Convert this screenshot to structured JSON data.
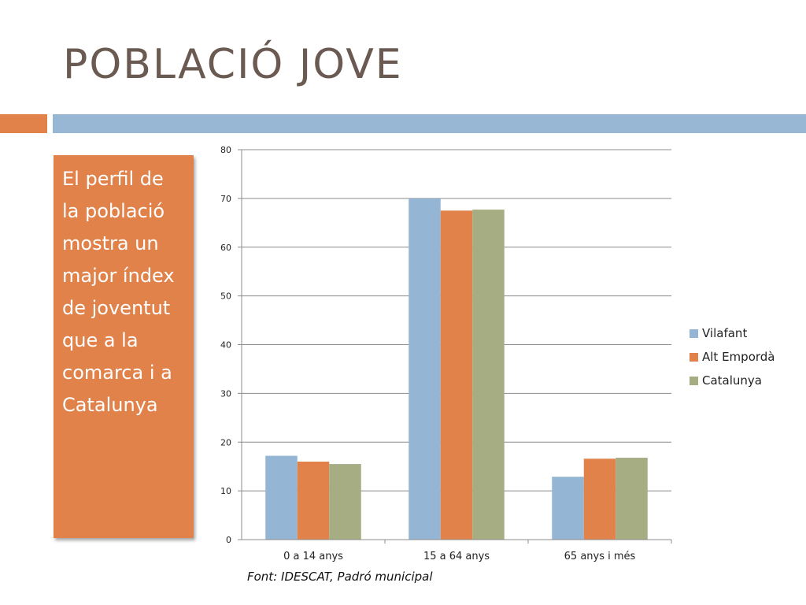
{
  "slide": {
    "title": "POBLACIÓ JOVE",
    "callout": "El perfil de la població mostra un major índex de joventut que a la comarca i a Catalunya",
    "source": "Font: IDESCAT, Padró municipal"
  },
  "colors": {
    "accent_orange": "#e0824a",
    "accent_blue": "#98b7d4",
    "title": "#6b5a52"
  },
  "chart_data": {
    "type": "bar",
    "title": "",
    "xlabel": "",
    "ylabel": "",
    "categories": [
      "0 a 14 anys",
      "15 a 64 anys",
      "65 anys i més"
    ],
    "series": [
      {
        "name": "Vilafant",
        "values": [
          17.2,
          70.0,
          12.9
        ],
        "color": "#95b5d4"
      },
      {
        "name": "Alt Empordà",
        "values": [
          16.0,
          67.5,
          16.6
        ],
        "color": "#e0824a"
      },
      {
        "name": "Catalunya",
        "values": [
          15.5,
          67.7,
          16.8
        ],
        "color": "#a6ad82"
      }
    ],
    "ylim": [
      0,
      80
    ],
    "yticks": [
      0,
      10,
      20,
      30,
      40,
      50,
      60,
      70,
      80
    ],
    "grid": true,
    "legend_position": "right"
  }
}
